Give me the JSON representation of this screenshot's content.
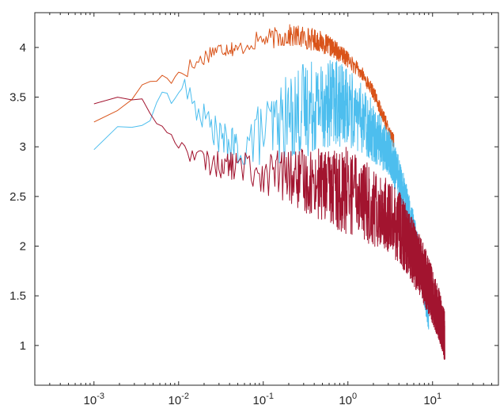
{
  "chart_data": {
    "type": "line",
    "title": "",
    "xlabel": "",
    "ylabel": "",
    "x_scale": "log",
    "xlim": [
      0.0002,
      60
    ],
    "ylim": [
      0.6,
      4.35
    ],
    "grid": false,
    "legend": "none",
    "x_ticks": [
      {
        "value": 0.001,
        "base": "10",
        "exp": "-3"
      },
      {
        "value": 0.01,
        "base": "10",
        "exp": "-2"
      },
      {
        "value": 0.1,
        "base": "10",
        "exp": "-1"
      },
      {
        "value": 1,
        "base": "10",
        "exp": "0"
      },
      {
        "value": 10,
        "base": "10",
        "exp": "1"
      }
    ],
    "y_ticks": [
      {
        "value": 1,
        "label": "1"
      },
      {
        "value": 1.5,
        "label": "1.5"
      },
      {
        "value": 2,
        "label": "2"
      },
      {
        "value": 2.5,
        "label": "2.5"
      },
      {
        "value": 3,
        "label": "3"
      },
      {
        "value": 3.5,
        "label": "3.5"
      },
      {
        "value": 4,
        "label": "4"
      }
    ],
    "series": [
      {
        "color": "#d95319",
        "points": [
          [
            0.001,
            3.26
          ],
          [
            0.002,
            3.36
          ],
          [
            0.003,
            3.5
          ],
          [
            0.004,
            3.68
          ],
          [
            0.005,
            3.63
          ],
          [
            0.006,
            3.7
          ],
          [
            0.007,
            3.73
          ],
          [
            0.008,
            3.64
          ],
          [
            0.01,
            3.75
          ],
          [
            0.012,
            3.78
          ],
          [
            0.015,
            3.82
          ],
          [
            0.02,
            3.9
          ],
          [
            0.025,
            3.97
          ],
          [
            0.03,
            3.98
          ],
          [
            0.04,
            4.0
          ],
          [
            0.05,
            3.97
          ],
          [
            0.06,
            4.02
          ],
          [
            0.08,
            4.06
          ],
          [
            0.1,
            4.08
          ],
          [
            0.15,
            4.1
          ],
          [
            0.2,
            4.12
          ],
          [
            0.3,
            4.1
          ],
          [
            0.4,
            4.08
          ],
          [
            0.5,
            4.05
          ],
          [
            0.7,
            3.98
          ],
          [
            1.0,
            3.88
          ],
          [
            1.5,
            3.72
          ],
          [
            2.0,
            3.55
          ],
          [
            2.5,
            3.35
          ],
          [
            3.0,
            3.18
          ],
          [
            3.5,
            3.05
          ]
        ],
        "noise": [
          [
            0.01,
            0.1
          ],
          [
            0.05,
            0.08
          ],
          [
            0.1,
            0.1
          ],
          [
            0.3,
            0.12
          ],
          [
            0.6,
            0.1
          ],
          [
            1.0,
            0.08
          ],
          [
            2.0,
            0.07
          ],
          [
            3.5,
            0.07
          ]
        ]
      },
      {
        "color": "#4dbeee",
        "points": [
          [
            0.001,
            2.98
          ],
          [
            0.002,
            3.2
          ],
          [
            0.003,
            3.19
          ],
          [
            0.004,
            3.25
          ],
          [
            0.005,
            3.3
          ],
          [
            0.006,
            3.55
          ],
          [
            0.007,
            3.58
          ],
          [
            0.008,
            3.42
          ],
          [
            0.01,
            3.55
          ],
          [
            0.012,
            3.6
          ],
          [
            0.015,
            3.4
          ],
          [
            0.02,
            3.3
          ],
          [
            0.025,
            3.2
          ],
          [
            0.03,
            3.1
          ],
          [
            0.04,
            3.02
          ],
          [
            0.05,
            2.98
          ],
          [
            0.06,
            3.02
          ],
          [
            0.08,
            3.1
          ],
          [
            0.1,
            3.15
          ],
          [
            0.15,
            3.22
          ],
          [
            0.2,
            3.3
          ],
          [
            0.3,
            3.38
          ],
          [
            0.4,
            3.42
          ],
          [
            0.5,
            3.45
          ],
          [
            0.7,
            3.44
          ],
          [
            1.0,
            3.4
          ],
          [
            1.5,
            3.28
          ],
          [
            2.0,
            3.15
          ],
          [
            3.0,
            2.95
          ],
          [
            4.0,
            2.7
          ],
          [
            5.0,
            2.4
          ],
          [
            6.0,
            2.15
          ],
          [
            7.0,
            1.85
          ],
          [
            8.0,
            1.55
          ],
          [
            9.0,
            1.3
          ]
        ],
        "noise": [
          [
            0.01,
            0.1
          ],
          [
            0.05,
            0.2
          ],
          [
            0.1,
            0.35
          ],
          [
            0.3,
            0.5
          ],
          [
            0.6,
            0.45
          ],
          [
            1.0,
            0.4
          ],
          [
            2.0,
            0.3
          ],
          [
            4.0,
            0.22
          ],
          [
            9.0,
            0.15
          ]
        ]
      },
      {
        "color": "#a2142f",
        "points": [
          [
            0.001,
            3.44
          ],
          [
            0.002,
            3.52
          ],
          [
            0.003,
            3.45
          ],
          [
            0.004,
            3.48
          ],
          [
            0.005,
            3.26
          ],
          [
            0.006,
            3.22
          ],
          [
            0.008,
            3.12
          ],
          [
            0.01,
            3.0
          ],
          [
            0.012,
            3.0
          ],
          [
            0.015,
            2.93
          ],
          [
            0.02,
            2.85
          ],
          [
            0.03,
            2.82
          ],
          [
            0.05,
            2.8
          ],
          [
            0.08,
            2.77
          ],
          [
            0.1,
            2.75
          ],
          [
            0.2,
            2.7
          ],
          [
            0.3,
            2.66
          ],
          [
            0.5,
            2.62
          ],
          [
            0.7,
            2.58
          ],
          [
            1.0,
            2.55
          ],
          [
            1.5,
            2.48
          ],
          [
            2.0,
            2.4
          ],
          [
            3.0,
            2.3
          ],
          [
            4.0,
            2.2
          ],
          [
            5.0,
            2.05
          ],
          [
            6.0,
            1.92
          ],
          [
            8.0,
            1.7
          ],
          [
            10.0,
            1.5
          ],
          [
            12.0,
            1.3
          ],
          [
            14.0,
            1.08
          ]
        ],
        "noise": [
          [
            0.01,
            0.1
          ],
          [
            0.05,
            0.15
          ],
          [
            0.1,
            0.22
          ],
          [
            0.3,
            0.32
          ],
          [
            0.6,
            0.38
          ],
          [
            1.0,
            0.45
          ],
          [
            2.0,
            0.4
          ],
          [
            5.0,
            0.35
          ],
          [
            10.0,
            0.28
          ],
          [
            14.0,
            0.25
          ]
        ]
      }
    ]
  }
}
